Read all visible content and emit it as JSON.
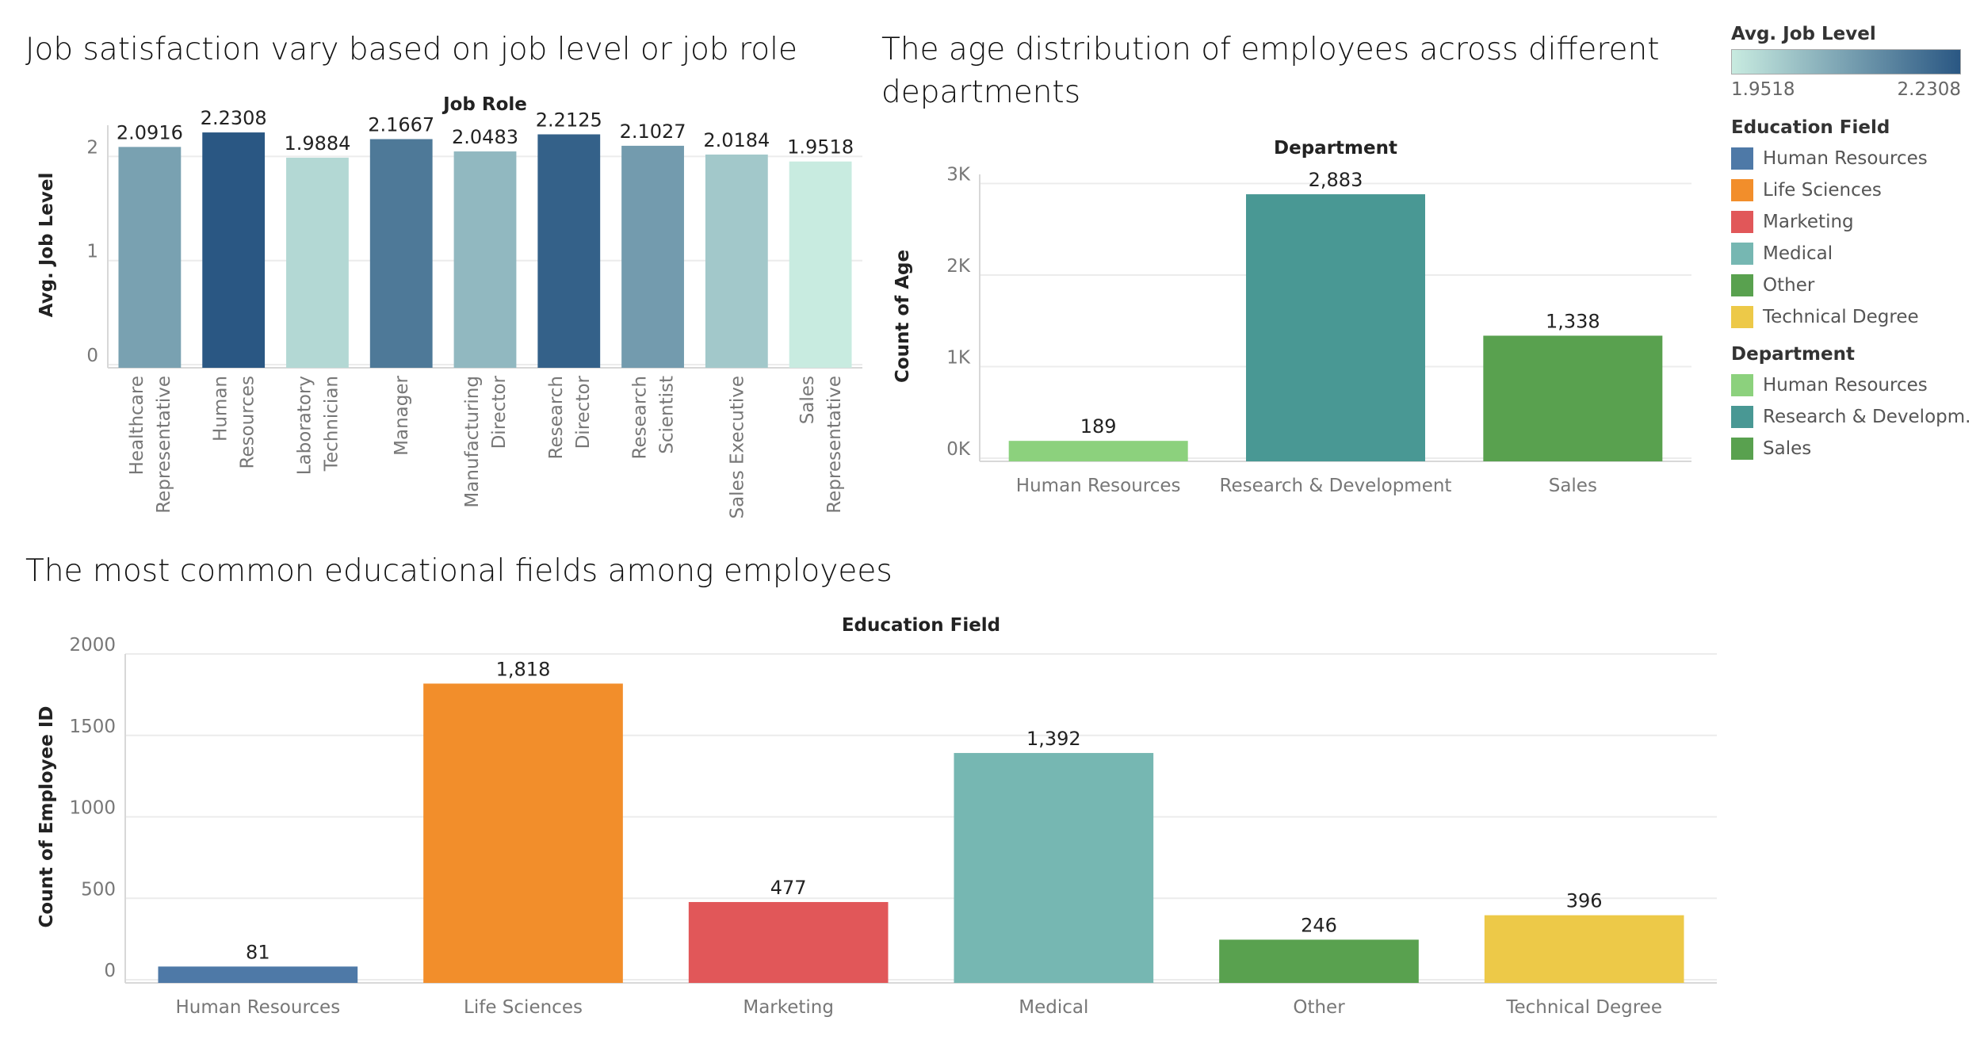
{
  "titles": {
    "chart1": "Job satisfaction vary based on job level or job role",
    "chart2": "The age distribution of employees across different departments",
    "chart3": "The most common educational fields among employees"
  },
  "legend": {
    "gradient_title": "Avg. Job Level",
    "gradient_min": "1.9518",
    "gradient_max": "2.2308",
    "gradient_colors": [
      "#c8ebe0",
      "#2a5783"
    ],
    "education_title": "Education Field",
    "education_items": [
      {
        "label": "Human Resources",
        "color": "#4e79a7"
      },
      {
        "label": "Life Sciences",
        "color": "#f28e2b"
      },
      {
        "label": "Marketing",
        "color": "#e15759"
      },
      {
        "label": "Medical",
        "color": "#76b7b2"
      },
      {
        "label": "Other",
        "color": "#59a14f"
      },
      {
        "label": "Technical Degree",
        "color": "#edc948"
      }
    ],
    "department_title": "Department",
    "department_items": [
      {
        "label": "Human Resources",
        "color": "#8cd17d"
      },
      {
        "label": "Research & Developm..",
        "color": "#499894"
      },
      {
        "label": "Sales",
        "color": "#59a14f"
      }
    ]
  },
  "chart_data": [
    {
      "type": "bar",
      "title": "Job satisfaction vary based on job level or job role",
      "xlabel": "Job Role",
      "ylabel": "Avg. Job Level",
      "categories": [
        [
          "Healthcare",
          "Representative"
        ],
        [
          "Human",
          "Resources"
        ],
        [
          "Laboratory",
          "Technician"
        ],
        [
          "Manager"
        ],
        [
          "Manufacturing",
          "Director"
        ],
        [
          "Research",
          "Director"
        ],
        [
          "Research",
          "Scientist"
        ],
        [
          "Sales Executive"
        ],
        [
          "Sales",
          "Representative"
        ]
      ],
      "values": [
        2.0916,
        2.2308,
        1.9884,
        2.1667,
        2.0483,
        2.2125,
        2.1027,
        2.0184,
        1.9518
      ],
      "value_labels": [
        "2.0916",
        "2.2308",
        "1.9884",
        "2.1667",
        "2.0483",
        "2.2125",
        "2.1027",
        "2.0184",
        "1.9518"
      ],
      "yticks": [
        "0",
        "1",
        "2"
      ],
      "ylim": [
        0,
        2.3
      ],
      "color_scale": {
        "min": 1.9518,
        "max": 2.2308,
        "colors": [
          "#c8ebe0",
          "#2a5783"
        ]
      }
    },
    {
      "type": "bar",
      "title": "The age distribution of employees across different departments",
      "xlabel": "Department",
      "ylabel": "Count of Age",
      "categories": [
        "Human Resources",
        "Research & Development",
        "Sales"
      ],
      "values": [
        189,
        2883,
        1338
      ],
      "value_labels": [
        "189",
        "2,883",
        "1,338"
      ],
      "colors": [
        "#8cd17d",
        "#499894",
        "#59a14f"
      ],
      "yticks": [
        "0K",
        "1K",
        "2K",
        "3K"
      ],
      "ylim": [
        0,
        3100
      ]
    },
    {
      "type": "bar",
      "title": "The most common educational fields among employees",
      "xlabel": "Education Field",
      "ylabel": "Count of Employee ID",
      "categories": [
        "Human Resources",
        "Life Sciences",
        "Marketing",
        "Medical",
        "Other",
        "Technical Degree"
      ],
      "values": [
        81,
        1818,
        477,
        1392,
        246,
        396
      ],
      "value_labels": [
        "81",
        "1,818",
        "477",
        "1,392",
        "246",
        "396"
      ],
      "colors": [
        "#4e79a7",
        "#f28e2b",
        "#e15759",
        "#76b7b2",
        "#59a14f",
        "#edc948"
      ],
      "yticks": [
        "0",
        "500",
        "1000",
        "1500",
        "2000"
      ],
      "ylim": [
        0,
        2000
      ]
    }
  ]
}
